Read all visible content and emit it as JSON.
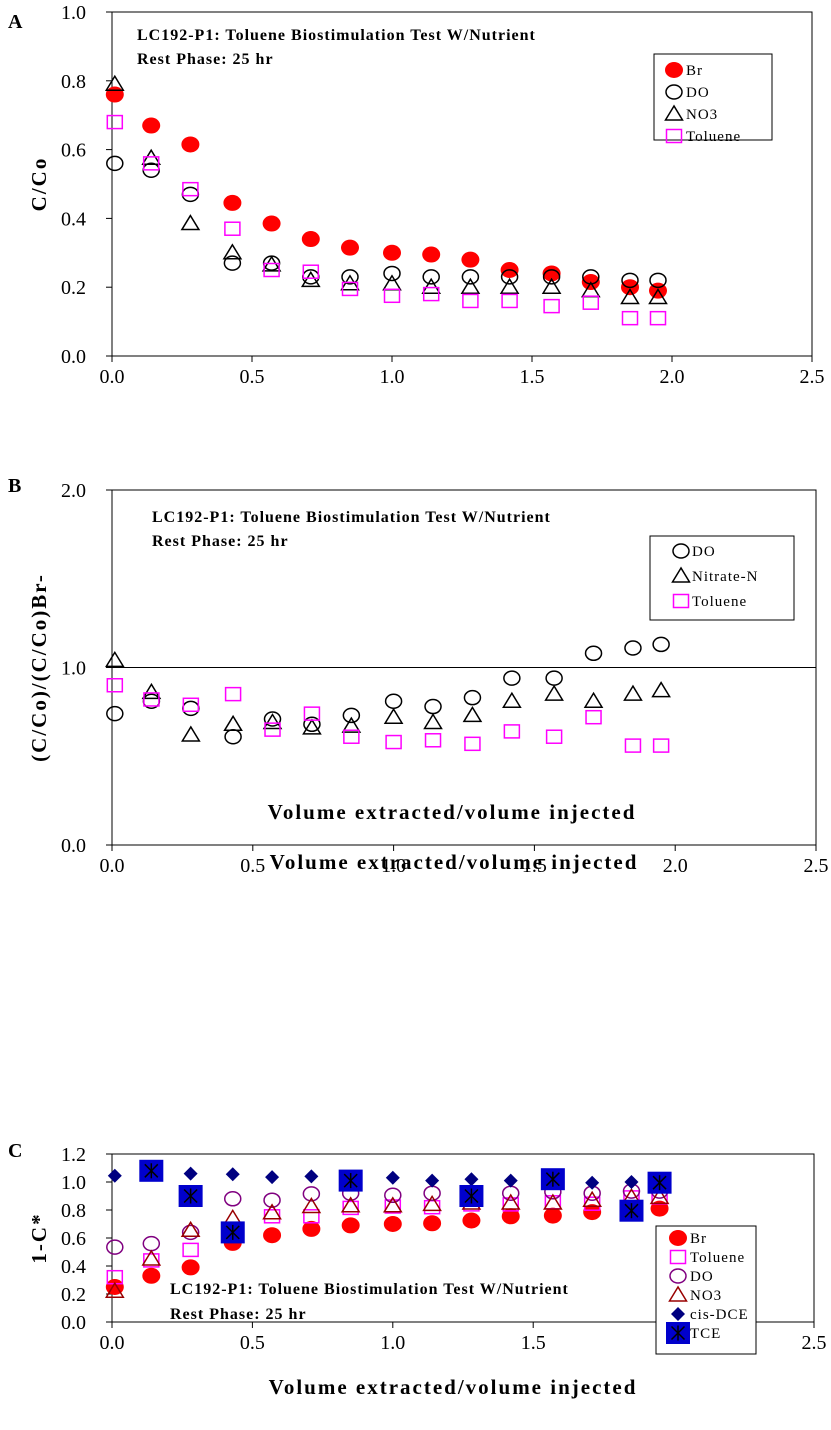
{
  "chart_data": [
    {
      "panel": "A",
      "type": "scatter",
      "annotation": [
        "LC192-P1: Toluene Biostimulation Test W/Nutrient",
        "Rest Phase: 25 hr"
      ],
      "xlabel": "Volume extracted/volume injected",
      "ylabel": "C/Co",
      "xlim": [
        0,
        2.5
      ],
      "ylim": [
        0,
        1.0
      ],
      "xticks": [
        "0.0",
        "0.5",
        "1.0",
        "1.5",
        "2.0",
        "2.5"
      ],
      "yticks": [
        "0.0",
        "0.2",
        "0.4",
        "0.6",
        "0.8",
        "1.0"
      ],
      "legend_position": "top-right",
      "series": [
        {
          "name": "Br",
          "marker": "filled-circle",
          "color": "#ff0000",
          "points": [
            [
              0.01,
              0.76
            ],
            [
              0.14,
              0.67
            ],
            [
              0.28,
              0.615
            ],
            [
              0.43,
              0.445
            ],
            [
              0.57,
              0.385
            ],
            [
              0.71,
              0.34
            ],
            [
              0.85,
              0.315
            ],
            [
              1.0,
              0.3
            ],
            [
              1.14,
              0.295
            ],
            [
              1.28,
              0.28
            ],
            [
              1.42,
              0.25
            ],
            [
              1.57,
              0.24
            ],
            [
              1.71,
              0.215
            ],
            [
              1.85,
              0.2
            ],
            [
              1.95,
              0.19
            ]
          ]
        },
        {
          "name": "DO",
          "marker": "open-circle",
          "color": "#000000",
          "points": [
            [
              0.01,
              0.56
            ],
            [
              0.14,
              0.54
            ],
            [
              0.28,
              0.47
            ],
            [
              0.43,
              0.27
            ],
            [
              0.57,
              0.27
            ],
            [
              0.71,
              0.23
            ],
            [
              0.85,
              0.23
            ],
            [
              1.0,
              0.24
            ],
            [
              1.14,
              0.23
            ],
            [
              1.28,
              0.23
            ],
            [
              1.42,
              0.23
            ],
            [
              1.57,
              0.23
            ],
            [
              1.71,
              0.23
            ],
            [
              1.85,
              0.22
            ],
            [
              1.95,
              0.22
            ]
          ]
        },
        {
          "name": "NO3",
          "marker": "open-triangle",
          "color": "#000000",
          "points": [
            [
              0.01,
              0.79
            ],
            [
              0.14,
              0.575
            ],
            [
              0.28,
              0.385
            ],
            [
              0.43,
              0.3
            ],
            [
              0.57,
              0.265
            ],
            [
              0.71,
              0.22
            ],
            [
              0.85,
              0.21
            ],
            [
              1.0,
              0.21
            ],
            [
              1.14,
              0.2
            ],
            [
              1.28,
              0.2
            ],
            [
              1.42,
              0.2
            ],
            [
              1.57,
              0.2
            ],
            [
              1.71,
              0.19
            ],
            [
              1.85,
              0.17
            ],
            [
              1.95,
              0.17
            ]
          ]
        },
        {
          "name": "Toluene",
          "marker": "open-square",
          "color": "#ff00ff",
          "points": [
            [
              0.01,
              0.68
            ],
            [
              0.14,
              0.56
            ],
            [
              0.28,
              0.485
            ],
            [
              0.43,
              0.37
            ],
            [
              0.57,
              0.25
            ],
            [
              0.71,
              0.245
            ],
            [
              0.85,
              0.195
            ],
            [
              1.0,
              0.175
            ],
            [
              1.14,
              0.18
            ],
            [
              1.28,
              0.16
            ],
            [
              1.42,
              0.16
            ],
            [
              1.57,
              0.145
            ],
            [
              1.71,
              0.155
            ],
            [
              1.85,
              0.11
            ],
            [
              1.95,
              0.11
            ]
          ]
        }
      ]
    },
    {
      "panel": "B",
      "type": "scatter",
      "annotation": [
        "LC192-P1: Toluene Biostimulation Test W/Nutrient",
        "Rest Phase: 25 hr"
      ],
      "xlabel": "Volume extracted/volume injected",
      "ylabel": "(C/Co)/(C/Co)Br-",
      "xlim": [
        0,
        2.5
      ],
      "ylim": [
        0,
        2.0
      ],
      "xticks": [
        "0.0",
        "0.5",
        "1.0",
        "1.5",
        "2.0",
        "2.5"
      ],
      "yticks": [
        "0.0",
        "1.0",
        "2.0"
      ],
      "reference_line_y": 1.0,
      "legend_position": "top-right",
      "series": [
        {
          "name": "DO",
          "marker": "open-circle",
          "color": "#000000",
          "points": [
            [
              0.01,
              0.74
            ],
            [
              0.14,
              0.81
            ],
            [
              0.28,
              0.77
            ],
            [
              0.43,
              0.61
            ],
            [
              0.57,
              0.71
            ],
            [
              0.71,
              0.68
            ],
            [
              0.85,
              0.73
            ],
            [
              1.0,
              0.81
            ],
            [
              1.14,
              0.78
            ],
            [
              1.28,
              0.83
            ],
            [
              1.42,
              0.94
            ],
            [
              1.57,
              0.94
            ],
            [
              1.71,
              1.08
            ],
            [
              1.85,
              1.11
            ],
            [
              1.95,
              1.13
            ]
          ]
        },
        {
          "name": "Nitrate-N",
          "marker": "open-triangle",
          "color": "#000000",
          "points": [
            [
              0.01,
              1.04
            ],
            [
              0.14,
              0.86
            ],
            [
              0.28,
              0.62
            ],
            [
              0.43,
              0.68
            ],
            [
              0.57,
              0.69
            ],
            [
              0.71,
              0.66
            ],
            [
              0.85,
              0.67
            ],
            [
              1.0,
              0.72
            ],
            [
              1.14,
              0.69
            ],
            [
              1.28,
              0.73
            ],
            [
              1.42,
              0.81
            ],
            [
              1.57,
              0.85
            ],
            [
              1.71,
              0.81
            ],
            [
              1.85,
              0.85
            ],
            [
              1.95,
              0.87
            ]
          ]
        },
        {
          "name": "Toluene",
          "marker": "open-square",
          "color": "#ff00ff",
          "points": [
            [
              0.01,
              0.9
            ],
            [
              0.14,
              0.82
            ],
            [
              0.28,
              0.79
            ],
            [
              0.43,
              0.85
            ],
            [
              0.57,
              0.65
            ],
            [
              0.71,
              0.74
            ],
            [
              0.85,
              0.61
            ],
            [
              1.0,
              0.58
            ],
            [
              1.14,
              0.59
            ],
            [
              1.28,
              0.57
            ],
            [
              1.42,
              0.64
            ],
            [
              1.57,
              0.61
            ],
            [
              1.71,
              0.72
            ],
            [
              1.85,
              0.56
            ],
            [
              1.95,
              0.56
            ]
          ]
        }
      ]
    },
    {
      "panel": "C",
      "type": "scatter",
      "annotation": [
        "LC192-P1: Toluene Biostimulation Test W/Nutrient",
        "Rest Phase: 25 hr"
      ],
      "xlabel": "Volume extracted/volume injected",
      "ylabel": "1-C*",
      "xlim": [
        0,
        2.5
      ],
      "ylim": [
        0,
        1.2
      ],
      "xticks": [
        "0.0",
        "0.5",
        "1.0",
        "1.5",
        "2.0",
        "2.5"
      ],
      "yticks": [
        "0.0",
        "0.2",
        "0.4",
        "0.6",
        "0.8",
        "1.0",
        "1.2"
      ],
      "legend_position": "right",
      "series": [
        {
          "name": "Br",
          "marker": "filled-circle",
          "color": "#ff0000",
          "points": [
            [
              0.01,
              0.25
            ],
            [
              0.14,
              0.33
            ],
            [
              0.28,
              0.39
            ],
            [
              0.43,
              0.565
            ],
            [
              0.57,
              0.62
            ],
            [
              0.71,
              0.665
            ],
            [
              0.85,
              0.69
            ],
            [
              1.0,
              0.7
            ],
            [
              1.14,
              0.705
            ],
            [
              1.28,
              0.725
            ],
            [
              1.42,
              0.755
            ],
            [
              1.57,
              0.76
            ],
            [
              1.71,
              0.785
            ],
            [
              1.85,
              0.8
            ],
            [
              1.95,
              0.81
            ]
          ]
        },
        {
          "name": "Toluene",
          "marker": "open-square",
          "color": "#ff00ff",
          "points": [
            [
              0.01,
              0.32
            ],
            [
              0.14,
              0.44
            ],
            [
              0.28,
              0.515
            ],
            [
              0.43,
              0.63
            ],
            [
              0.57,
              0.755
            ],
            [
              0.71,
              0.755
            ],
            [
              0.85,
              0.815
            ],
            [
              1.0,
              0.825
            ],
            [
              1.14,
              0.82
            ],
            [
              1.28,
              0.84
            ],
            [
              1.42,
              0.84
            ],
            [
              1.57,
              0.855
            ],
            [
              1.71,
              0.845
            ],
            [
              1.85,
              0.89
            ],
            [
              1.95,
              0.89
            ]
          ]
        },
        {
          "name": "DO",
          "marker": "open-circle",
          "color": "#800080",
          "points": [
            [
              0.01,
              0.535
            ],
            [
              0.14,
              0.56
            ],
            [
              0.28,
              0.64
            ],
            [
              0.43,
              0.88
            ],
            [
              0.57,
              0.87
            ],
            [
              0.71,
              0.915
            ],
            [
              0.85,
              0.92
            ],
            [
              1.0,
              0.905
            ],
            [
              1.14,
              0.92
            ],
            [
              1.28,
              0.92
            ],
            [
              1.42,
              0.92
            ],
            [
              1.57,
              0.93
            ],
            [
              1.71,
              0.92
            ],
            [
              1.85,
              0.935
            ],
            [
              1.95,
              0.935
            ]
          ]
        },
        {
          "name": "NO3",
          "marker": "open-triangle",
          "color": "#990000",
          "points": [
            [
              0.01,
              0.22
            ],
            [
              0.14,
              0.45
            ],
            [
              0.28,
              0.655
            ],
            [
              0.43,
              0.74
            ],
            [
              0.57,
              0.78
            ],
            [
              0.71,
              0.825
            ],
            [
              0.85,
              0.83
            ],
            [
              1.0,
              0.83
            ],
            [
              1.14,
              0.84
            ],
            [
              1.28,
              0.85
            ],
            [
              1.42,
              0.85
            ],
            [
              1.57,
              0.85
            ],
            [
              1.71,
              0.87
            ],
            [
              1.85,
              0.89
            ],
            [
              1.95,
              0.89
            ]
          ]
        },
        {
          "name": "cis-DCE",
          "marker": "filled-diamond",
          "color": "#000080",
          "points": [
            [
              0.01,
              1.045
            ],
            [
              0.14,
              1.065
            ],
            [
              0.28,
              1.06
            ],
            [
              0.43,
              1.055
            ],
            [
              0.57,
              1.035
            ],
            [
              0.71,
              1.04
            ],
            [
              0.85,
              1.03
            ],
            [
              1.0,
              1.03
            ],
            [
              1.14,
              1.01
            ],
            [
              1.28,
              1.02
            ],
            [
              1.42,
              1.01
            ],
            [
              1.57,
              1.02
            ],
            [
              1.71,
              0.995
            ],
            [
              1.85,
              1.0
            ],
            [
              1.95,
              1.0
            ]
          ]
        },
        {
          "name": "TCE",
          "marker": "square-star",
          "color": "#0000cc",
          "points": [
            [
              0.14,
              1.08
            ],
            [
              0.28,
              0.9
            ],
            [
              0.43,
              0.64
            ],
            [
              0.85,
              1.01
            ],
            [
              1.28,
              0.9
            ],
            [
              1.57,
              1.02
            ],
            [
              1.85,
              0.795
            ],
            [
              1.95,
              0.995
            ]
          ]
        }
      ]
    }
  ]
}
